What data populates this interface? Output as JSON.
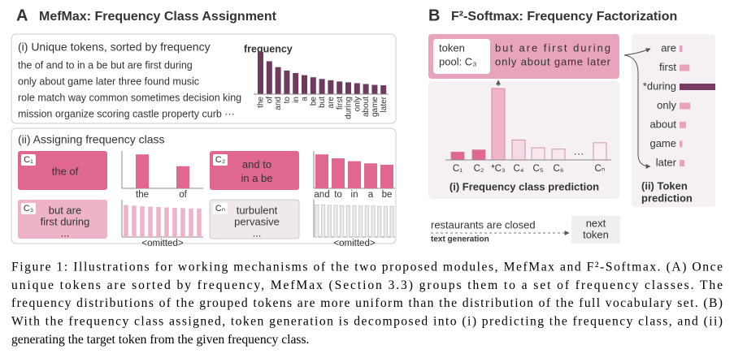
{
  "panel_a": {
    "label": "A",
    "title": "MefMax: Frequency Class Assignment",
    "sorted": {
      "heading": "(i) Unique tokens, sorted by frequency",
      "lines": [
        "the of and to in a be but are first during",
        "only about game later three found music",
        "role match way common sometimes decision king",
        "mission organize scoring castle property curb ···"
      ],
      "chart_title": "frequency",
      "categories": [
        "the",
        "of",
        "and",
        "to",
        "in",
        "a",
        "be",
        "but",
        "are",
        "first",
        "during",
        "only",
        "about",
        "game",
        "later"
      ],
      "values": [
        100,
        78,
        64,
        56,
        50,
        45,
        40,
        36,
        33,
        30,
        28,
        26,
        24,
        22,
        21
      ],
      "ylim": [
        0,
        100
      ]
    },
    "assign": {
      "heading": "(ii) Assigning frequency class",
      "ylim": [
        0,
        100
      ],
      "classes": [
        {
          "id": "C₁",
          "lines": [
            "the of"
          ],
          "labels": [
            "the",
            "of"
          ],
          "values": [
            95,
            62
          ],
          "color": "#e0688f"
        },
        {
          "id": "C₂",
          "lines": [
            "and to",
            "in a be"
          ],
          "labels": [
            "and",
            "to",
            "in",
            "a",
            "be"
          ],
          "values": [
            95,
            84,
            76,
            70,
            66
          ],
          "color": "#e0688f"
        },
        {
          "id": "C₃",
          "lines": [
            "but are",
            "first during",
            "..."
          ],
          "labels": [
            "<omitted>"
          ],
          "values": [
            90,
            88,
            86,
            85,
            84,
            83,
            82,
            81,
            80,
            80
          ],
          "color": "#eeb3c8"
        },
        {
          "id": "Cₙ",
          "lines": [
            "turbulent",
            "pervasive",
            "..."
          ],
          "labels": [
            "<omitted>"
          ],
          "values": [
            90,
            90,
            89,
            89,
            88,
            88,
            88,
            87,
            87,
            87,
            86,
            86,
            86
          ],
          "color": "#efe9ea"
        }
      ]
    }
  },
  "panel_b": {
    "label": "B",
    "title": "F²-Softmax: Frequency Factorization",
    "pool": {
      "label": [
        "token",
        "pool: C₃"
      ],
      "lines": [
        "but are first during",
        "only about game later"
      ]
    },
    "class_prediction": {
      "categories": [
        "C₁",
        "C₂",
        "*C₃",
        "C₄",
        "C₅",
        "C₆",
        "Cₙ"
      ],
      "ellipsis": "···",
      "values": [
        11,
        14,
        100,
        28,
        17,
        15,
        24
      ],
      "ylim": [
        0,
        100
      ],
      "colors": [
        "#e0688f",
        "#e0688f",
        "#f0b5c9",
        "#f4dbe3",
        "#f7e8ee",
        "#f7e8ee",
        "#f7eff2"
      ],
      "caption": "(i) Frequency class prediction"
    },
    "token_prediction": {
      "categories": [
        "are",
        "first",
        "*during",
        "only",
        "about",
        "game",
        "later"
      ],
      "values": [
        8,
        28,
        100,
        30,
        18,
        8,
        14
      ],
      "ylim": [
        0,
        100
      ],
      "color": "#e8a3bd",
      "highlight_color": "#7a3b62",
      "caption": [
        "(ii) Token",
        "prediction"
      ]
    },
    "generation": {
      "context": "restaurants are closed",
      "label": "text generation",
      "next": [
        "next",
        "token"
      ]
    }
  },
  "caption": [
    "Figure 1: Illustrations for working mechanisms of the two proposed modules, MefMax and F²-Softmax. (A) Once",
    "unique tokens are sorted by frequency, MefMax (Section 3.3) groups them to a set of frequency classes. The",
    "frequency distributions of the grouped tokens are more uniform than the distribution of the full vocabulary set. (B)",
    "With the frequency class assigned, token generation is decomposed into (i) predicting the frequency class, and (ii)",
    "generating the target token from the given frequency class."
  ]
}
